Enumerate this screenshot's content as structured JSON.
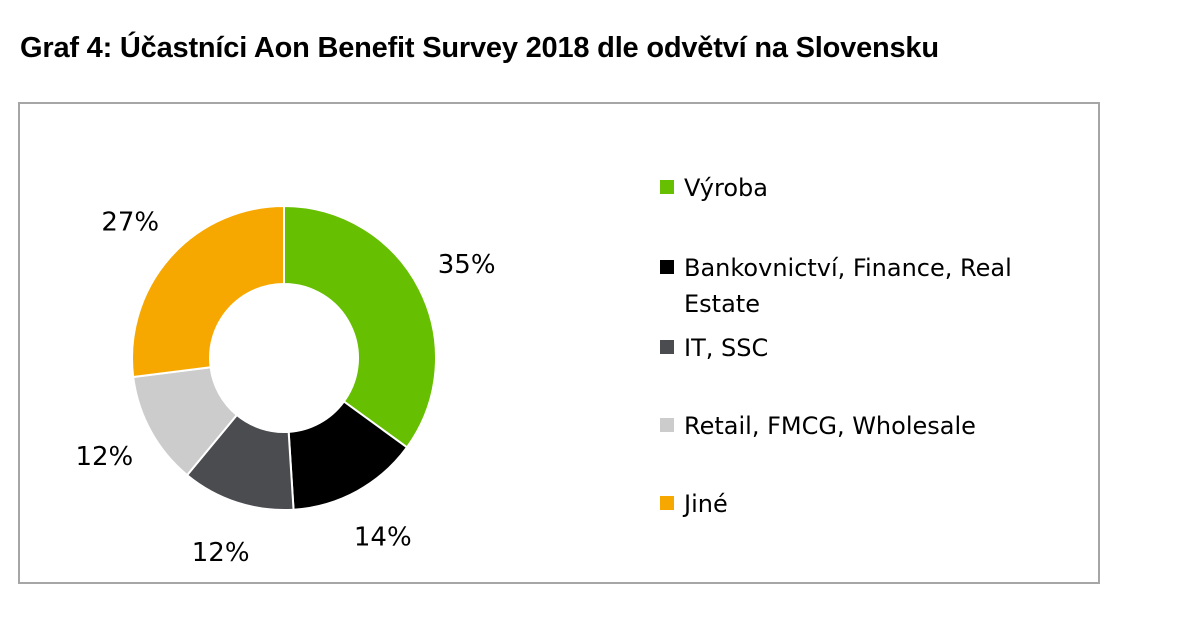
{
  "title": "Graf 4: Účastníci Aon Benefit Survey 2018 dle odvětví na Slovensku",
  "chart_data": {
    "type": "pie",
    "style": "donut",
    "legend_position": "right",
    "slices": [
      {
        "label": "Výroba",
        "value": 35,
        "display": "35%",
        "color": "#66bf00"
      },
      {
        "label": "Bankovnictví, Finance, Real Estate",
        "value": 14,
        "display": "14%",
        "color": "#000000"
      },
      {
        "label": "IT, SSC",
        "value": 12,
        "display": "12%",
        "color": "#4b4c50"
      },
      {
        "label": "Retail, FMCG, Wholesale",
        "value": 12,
        "display": "12%",
        "color": "#cccccc"
      },
      {
        "label": "Jiné",
        "value": 27,
        "display": "27%",
        "color": "#f7a800"
      }
    ]
  }
}
